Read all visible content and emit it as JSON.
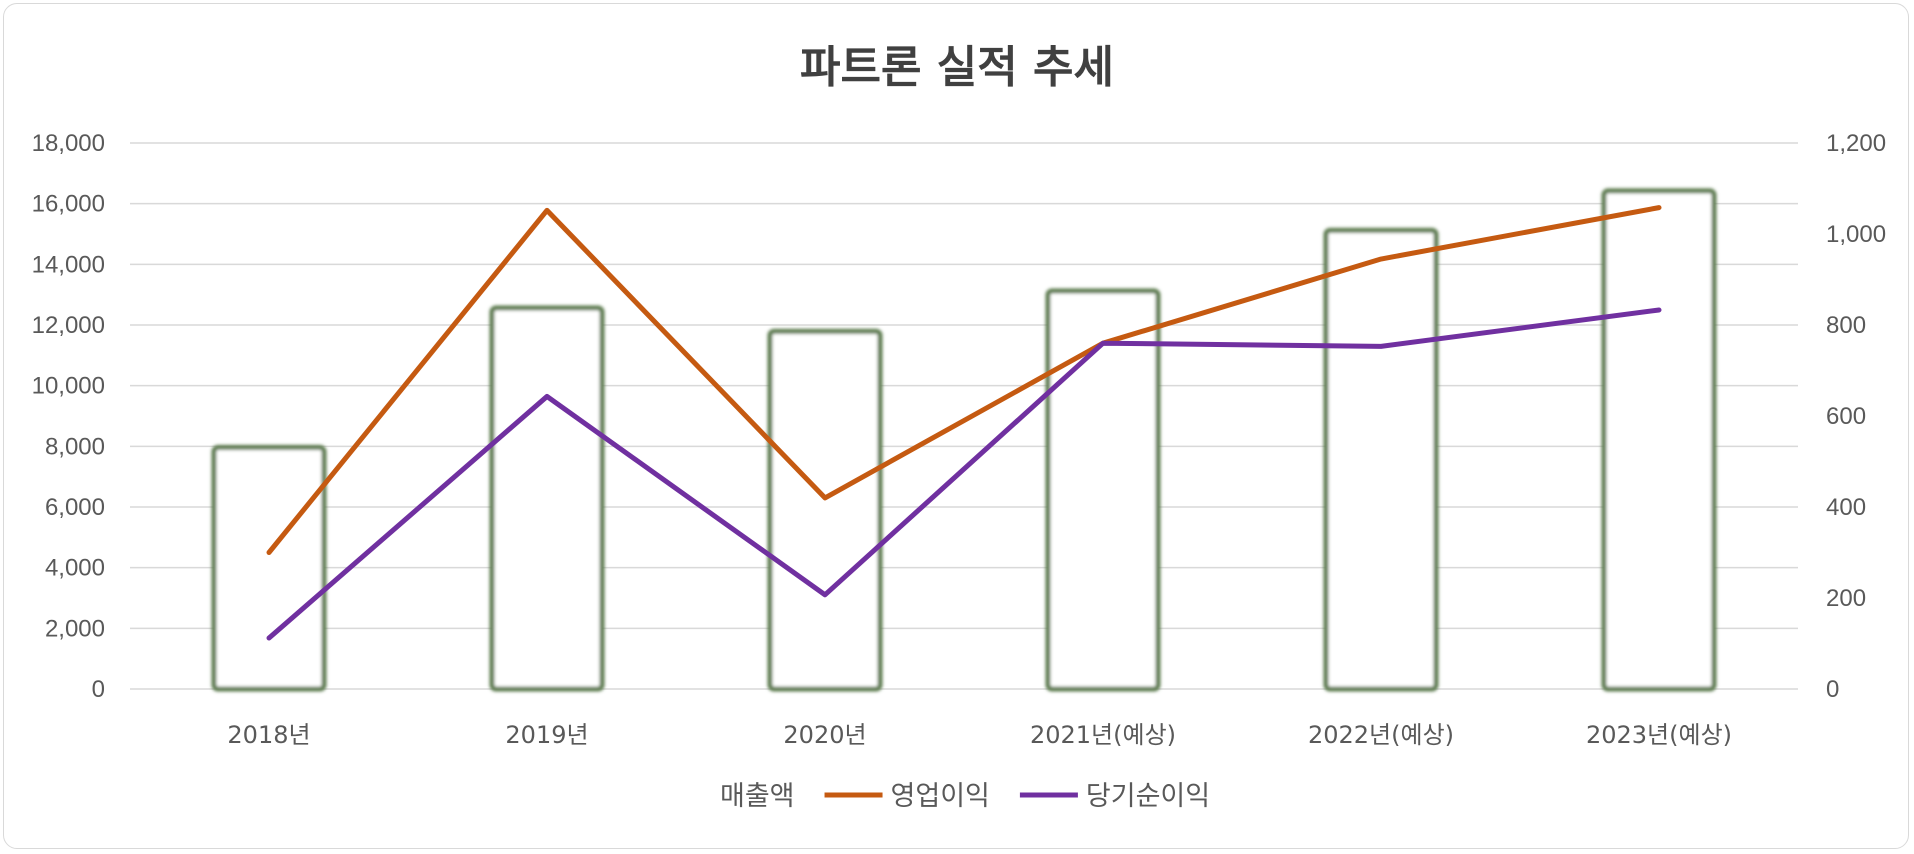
{
  "chart_data": {
    "type": "bar",
    "title": "파트론 실적 추세",
    "categories": [
      "2018년",
      "2019년",
      "2020년",
      "2021년(예상)",
      "2022년(예상)",
      "2023년(예상)"
    ],
    "series": [
      {
        "name": "매출액",
        "type": "bar",
        "axis": "left",
        "values": [
          7960,
          12560,
          11790,
          13120,
          15120,
          16420
        ],
        "color": "#5b7a4e"
      },
      {
        "name": "영업이익",
        "type": "line",
        "axis": "right",
        "values": [
          300,
          1052,
          420,
          760,
          945,
          1058
        ],
        "color": "#c55a11"
      },
      {
        "name": "당기순이익",
        "type": "line",
        "axis": "right",
        "values": [
          112,
          643,
          207,
          760,
          753,
          833
        ],
        "color": "#7030a0"
      }
    ],
    "y_left": {
      "min": 0,
      "max": 18000,
      "step": 2000,
      "ticks": [
        "0",
        "2,000",
        "4,000",
        "6,000",
        "8,000",
        "10,000",
        "12,000",
        "14,000",
        "16,000",
        "18,000"
      ]
    },
    "y_right": {
      "min": 0,
      "max": 1200,
      "step": 200,
      "ticks": [
        "0",
        "200",
        "400",
        "600",
        "800",
        "1,000",
        "1,200"
      ]
    },
    "grid": true,
    "legend_position": "bottom"
  }
}
